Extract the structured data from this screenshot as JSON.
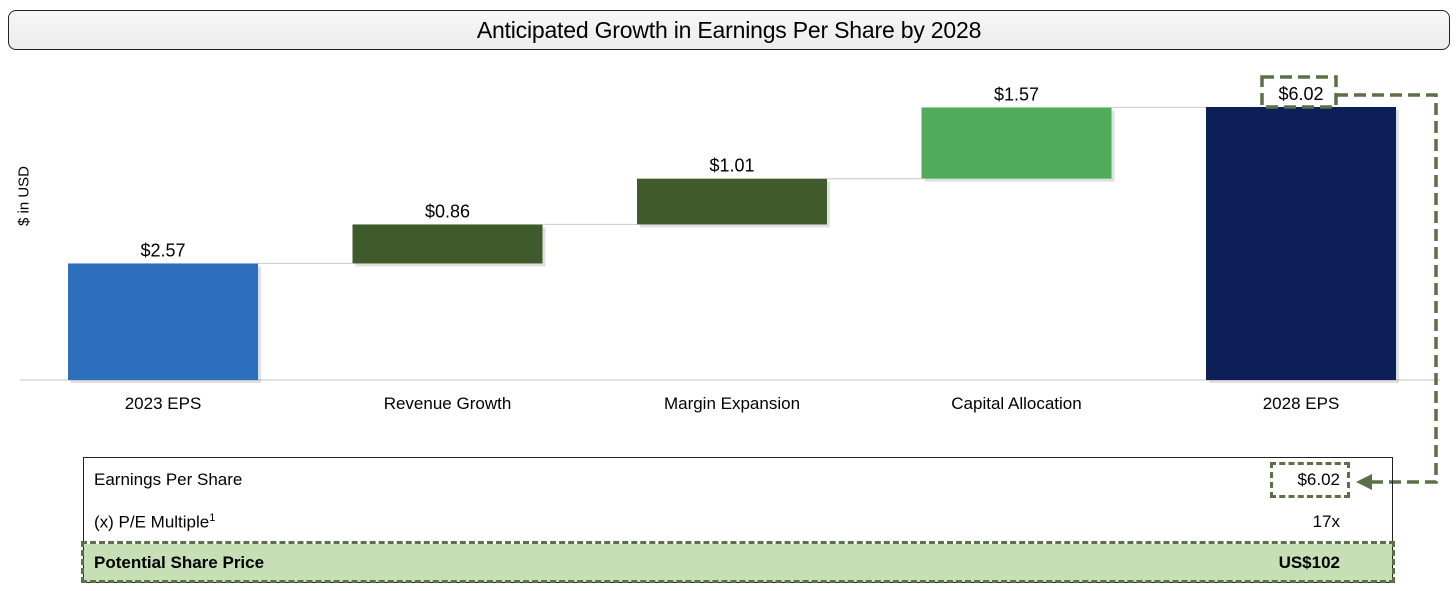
{
  "title": "Anticipated Growth in Earnings Per Share by 2028",
  "chart_data": {
    "type": "bar",
    "subtype": "waterfall",
    "ylabel": "$ in USD",
    "categories": [
      "2023 EPS",
      "Revenue Growth",
      "Margin Expansion",
      "Capital Allocation",
      "2028 EPS"
    ],
    "values": [
      2.57,
      0.86,
      1.01,
      1.57,
      6.02
    ],
    "bar_kinds": [
      "total",
      "increment",
      "increment",
      "increment",
      "total"
    ],
    "data_labels": [
      "$2.57",
      "$0.86",
      "$1.01",
      "$1.57",
      "$6.02"
    ],
    "colors": [
      "#2e6fbd",
      "#3f5a2b",
      "#3f5a2b",
      "#4fac5b",
      "#0c1f56"
    ],
    "ylim": [
      0,
      6.5
    ],
    "grid": false,
    "legend": "none"
  },
  "table": {
    "rows": [
      {
        "label": "Earnings Per Share",
        "value": "$6.02"
      },
      {
        "label": "(x) P/E Multiple",
        "superscript": "1",
        "value": "17x"
      },
      {
        "label": "Potential Share Price",
        "value": "US$102"
      }
    ],
    "highlight_color": "#c6dfb4",
    "dash_color": "#5a7147"
  }
}
